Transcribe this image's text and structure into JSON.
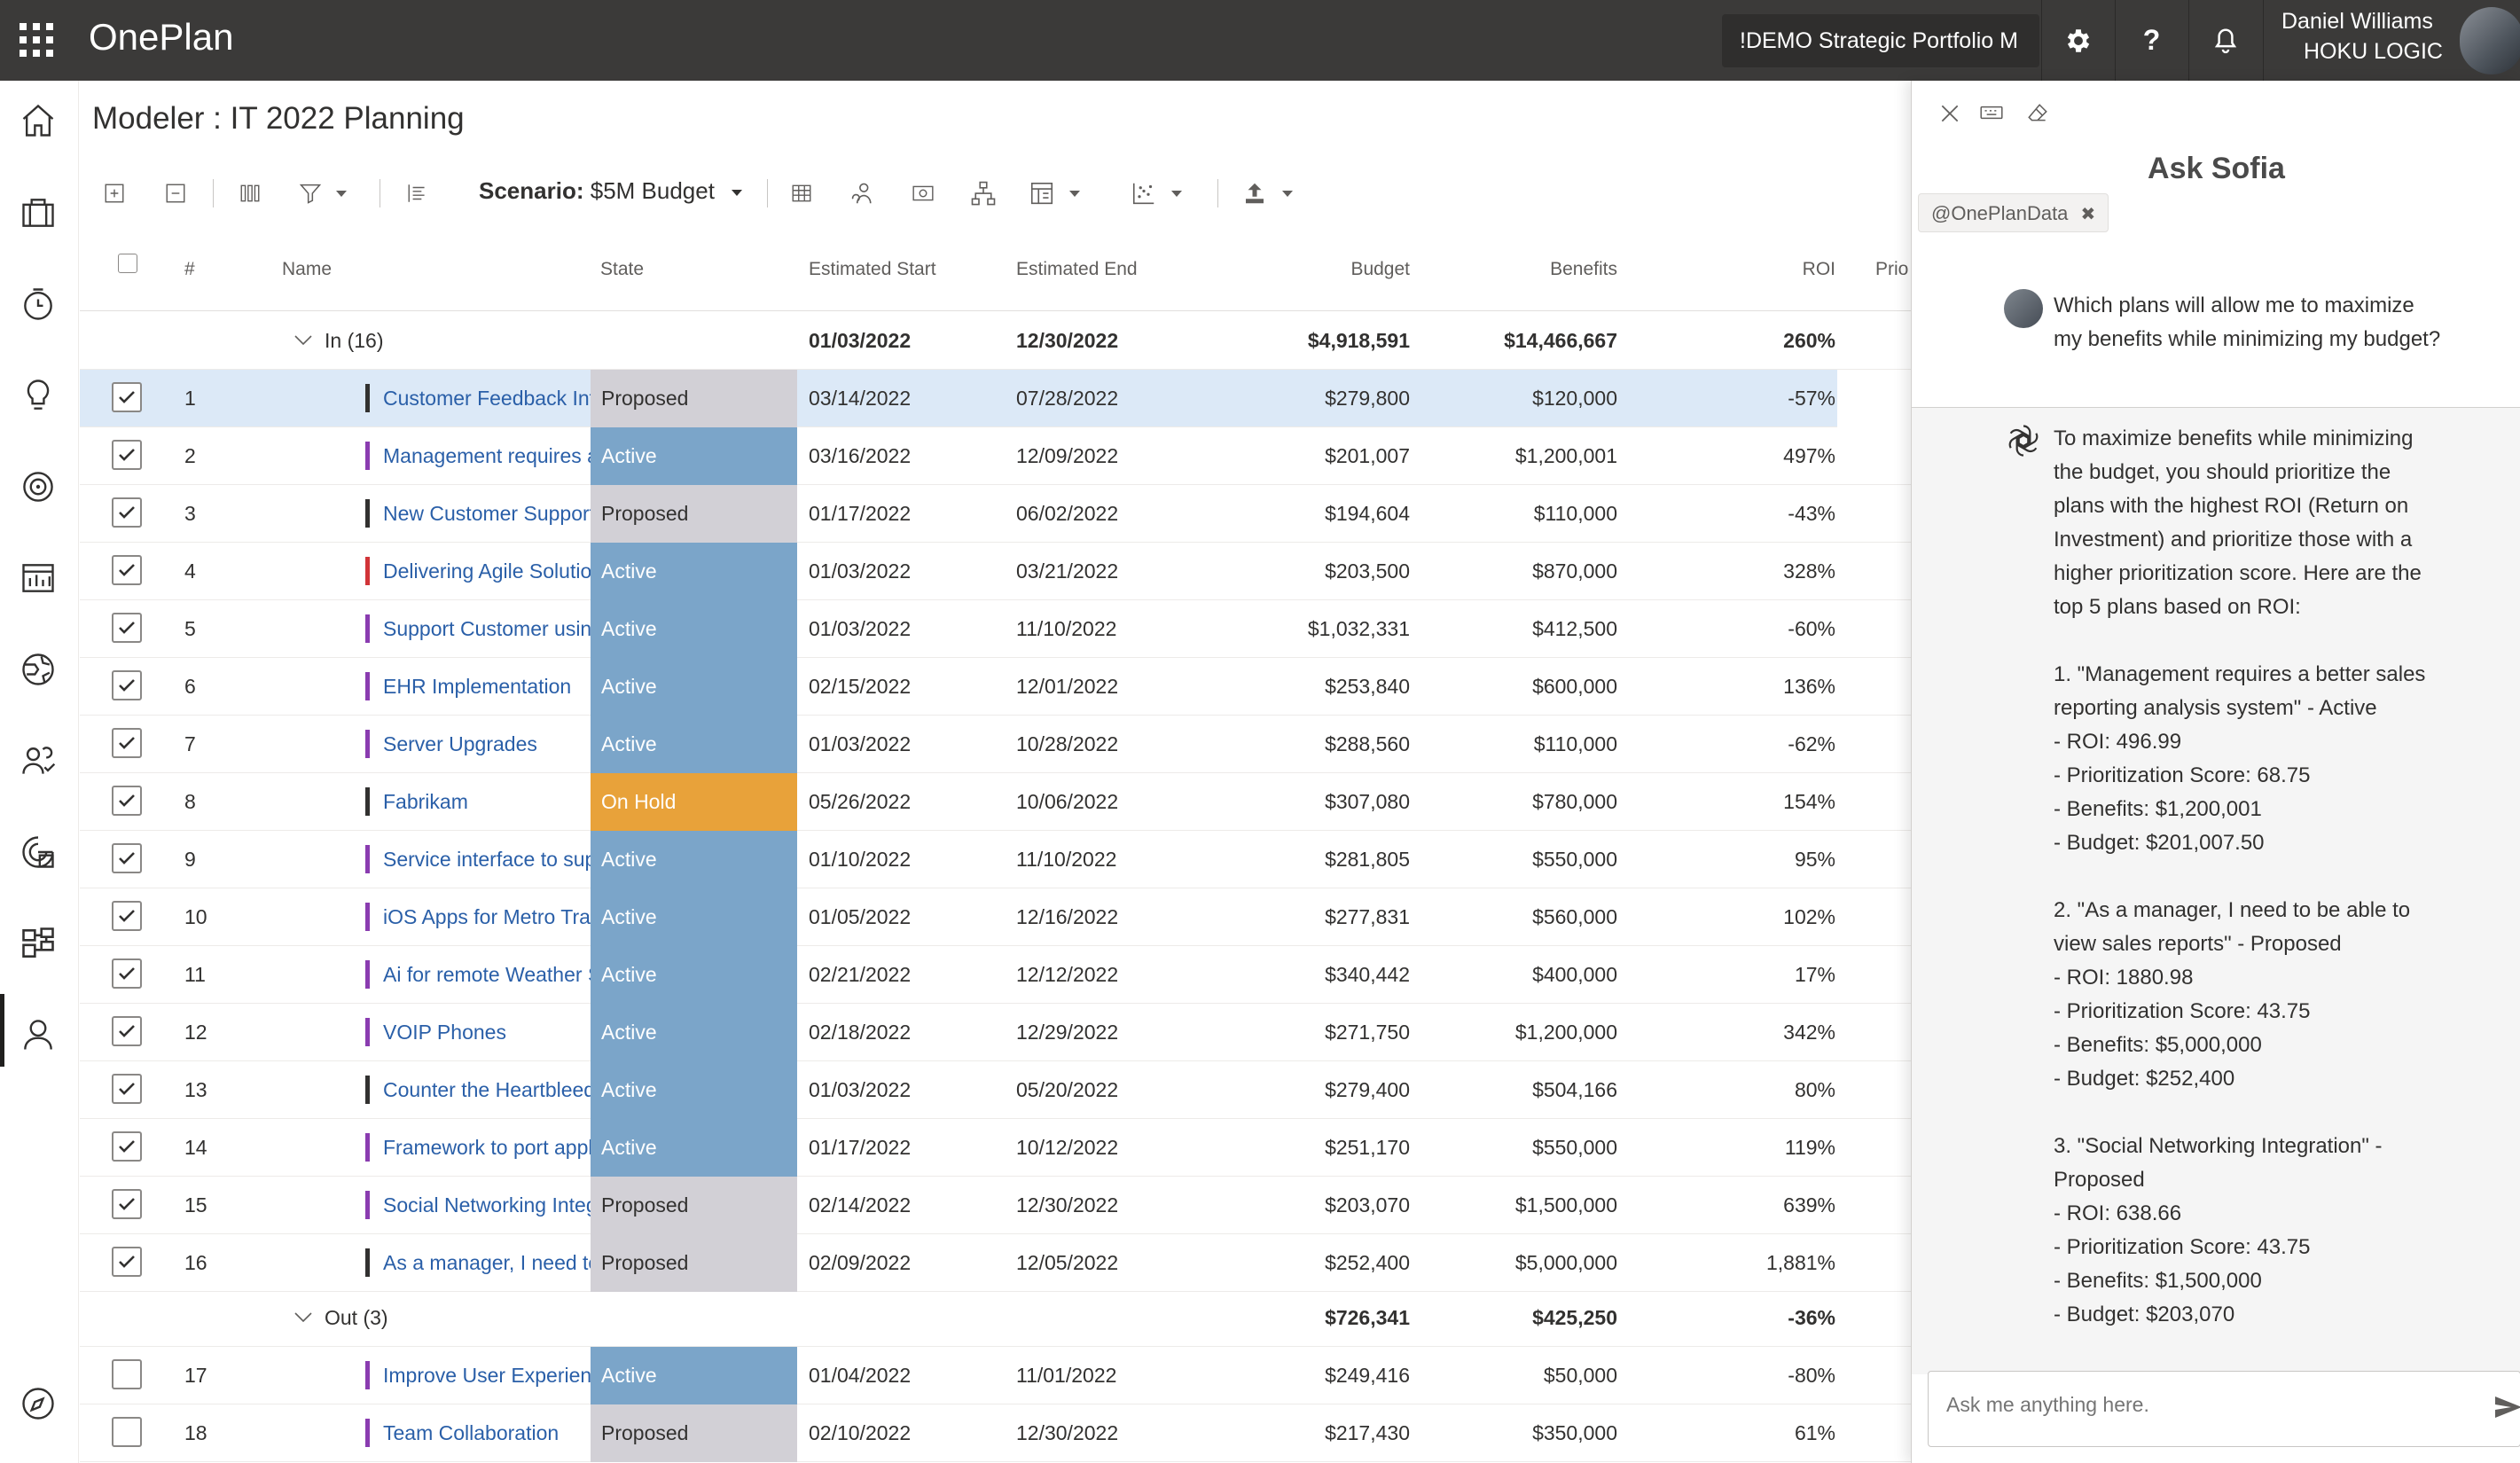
{
  "app": {
    "name": "OnePlan",
    "portfolio": "!DEMO Strategic Portfolio M",
    "user_name": "Daniel Williams",
    "user_org": "HOKU LOGIC"
  },
  "page": {
    "title": "Modeler : IT 2022 Planning"
  },
  "toolbar": {
    "scenario_label": "Scenario:",
    "scenario_value": "$5M Budget"
  },
  "grid": {
    "headers": {
      "num": "#",
      "name": "Name",
      "state": "State",
      "start": "Estimated Start",
      "end": "Estimated End",
      "budget": "Budget",
      "benefits": "Benefits",
      "roi": "ROI",
      "priority": "Prio"
    },
    "group_in": {
      "label": "In (16)",
      "start": "01/03/2022",
      "end": "12/30/2022",
      "budget": "$4,918,591",
      "benefits": "$14,466,667",
      "roi": "260%"
    },
    "group_out": {
      "label": "Out (3)",
      "budget": "$726,341",
      "benefits": "$425,250",
      "roi": "-36%"
    },
    "rows": [
      {
        "num": "1",
        "name": "Customer Feedback Integration",
        "state": "Proposed",
        "start": "03/14/2022",
        "end": "07/28/2022",
        "budget": "$279,800",
        "benefits": "$120,000",
        "roi": "-57%",
        "checked": true,
        "bar": "#323130"
      },
      {
        "num": "2",
        "name": "Management requires a better sales reporting analysis system",
        "state": "Active",
        "start": "03/16/2022",
        "end": "12/09/2022",
        "budget": "$201,007",
        "benefits": "$1,200,001",
        "roi": "497%",
        "checked": true,
        "bar": "#8a3cb0"
      },
      {
        "num": "3",
        "name": "New Customer Support Portal",
        "state": "Proposed",
        "start": "01/17/2022",
        "end": "06/02/2022",
        "budget": "$194,604",
        "benefits": "$110,000",
        "roi": "-43%",
        "checked": true,
        "bar": "#323130"
      },
      {
        "num": "4",
        "name": "Delivering Agile Solutions",
        "state": "Active",
        "start": "01/03/2022",
        "end": "03/21/2022",
        "budget": "$203,500",
        "benefits": "$870,000",
        "roi": "328%",
        "checked": true,
        "bar": "#d13438"
      },
      {
        "num": "5",
        "name": "Support Customer using Chat",
        "state": "Active",
        "start": "01/03/2022",
        "end": "11/10/2022",
        "budget": "$1,032,331",
        "benefits": "$412,500",
        "roi": "-60%",
        "checked": true,
        "bar": "#8a3cb0"
      },
      {
        "num": "6",
        "name": "EHR Implementation",
        "state": "Active",
        "start": "02/15/2022",
        "end": "12/01/2022",
        "budget": "$253,840",
        "benefits": "$600,000",
        "roi": "136%",
        "checked": true,
        "bar": "#8a3cb0"
      },
      {
        "num": "7",
        "name": "Server Upgrades",
        "state": "Active",
        "start": "01/03/2022",
        "end": "10/28/2022",
        "budget": "$288,560",
        "benefits": "$110,000",
        "roi": "-62%",
        "checked": true,
        "bar": "#8a3cb0"
      },
      {
        "num": "8",
        "name": "Fabrikam",
        "state": "On Hold",
        "start": "05/26/2022",
        "end": "10/06/2022",
        "budget": "$307,080",
        "benefits": "$780,000",
        "roi": "154%",
        "checked": true,
        "bar": "#323130"
      },
      {
        "num": "9",
        "name": "Service interface to support",
        "state": "Active",
        "start": "01/10/2022",
        "end": "11/10/2022",
        "budget": "$281,805",
        "benefits": "$550,000",
        "roi": "95%",
        "checked": true,
        "bar": "#8a3cb0"
      },
      {
        "num": "10",
        "name": "iOS Apps for Metro Transit",
        "state": "Active",
        "start": "01/05/2022",
        "end": "12/16/2022",
        "budget": "$277,831",
        "benefits": "$560,000",
        "roi": "102%",
        "checked": true,
        "bar": "#8a3cb0"
      },
      {
        "num": "11",
        "name": "Ai for remote Weather Stations",
        "state": "Active",
        "start": "02/21/2022",
        "end": "12/12/2022",
        "budget": "$340,442",
        "benefits": "$400,000",
        "roi": "17%",
        "checked": true,
        "bar": "#8a3cb0"
      },
      {
        "num": "12",
        "name": "VOIP Phones",
        "state": "Active",
        "start": "02/18/2022",
        "end": "12/29/2022",
        "budget": "$271,750",
        "benefits": "$1,200,000",
        "roi": "342%",
        "checked": true,
        "bar": "#8a3cb0"
      },
      {
        "num": "13",
        "name": "Counter the Heartbleed Bug",
        "state": "Active",
        "start": "01/03/2022",
        "end": "05/20/2022",
        "budget": "$279,400",
        "benefits": "$504,166",
        "roi": "80%",
        "checked": true,
        "bar": "#323130"
      },
      {
        "num": "14",
        "name": "Framework to port applications",
        "state": "Active",
        "start": "01/17/2022",
        "end": "10/12/2022",
        "budget": "$251,170",
        "benefits": "$550,000",
        "roi": "119%",
        "checked": true,
        "bar": "#8a3cb0"
      },
      {
        "num": "15",
        "name": "Social Networking Integration",
        "state": "Proposed",
        "start": "02/14/2022",
        "end": "12/30/2022",
        "budget": "$203,070",
        "benefits": "$1,500,000",
        "roi": "639%",
        "checked": true,
        "bar": "#8a3cb0"
      },
      {
        "num": "16",
        "name": "As a manager, I need to be able to view sales reports",
        "state": "Proposed",
        "start": "02/09/2022",
        "end": "12/05/2022",
        "budget": "$252,400",
        "benefits": "$5,000,000",
        "roi": "1,881%",
        "checked": true,
        "bar": "#323130"
      }
    ],
    "out_rows": [
      {
        "num": "17",
        "name": "Improve User Experience",
        "state": "Active",
        "start": "01/04/2022",
        "end": "11/01/2022",
        "budget": "$249,416",
        "benefits": "$50,000",
        "roi": "-80%",
        "checked": false,
        "bar": "#8a3cb0"
      },
      {
        "num": "18",
        "name": "Team Collaboration",
        "state": "Proposed",
        "start": "02/10/2022",
        "end": "12/30/2022",
        "budget": "$217,430",
        "benefits": "$350,000",
        "roi": "61%",
        "checked": false,
        "bar": "#8a3cb0"
      }
    ]
  },
  "state_colors": {
    "Proposed": "#d2d0d6",
    "Active": "#7ba5c9",
    "On Hold": "#e8a23a"
  },
  "sofia": {
    "title": "Ask Sofia",
    "tag": "@OnePlanData",
    "question": "Which plans will allow me to maximize my benefits while minimizing my budget?",
    "answer": "To maximize benefits while minimizing the budget, you should prioritize the plans with the highest ROI (Return on Investment) and prioritize those with a higher prioritization score. Here are the top 5 plans based on ROI:\n\n1. \"Management requires a better sales reporting analysis system\" - Active\n- ROI: 496.99\n- Prioritization Score: 68.75\n- Benefits: $1,200,001\n- Budget: $201,007.50\n\n2. \"As a manager, I need to be able to view sales reports\" - Proposed\n- ROI: 1880.98\n- Prioritization Score: 43.75\n- Benefits: $5,000,000\n- Budget: $252,400\n\n3. \"Social Networking Integration\" - Proposed\n- ROI: 638.66\n- Prioritization Score: 43.75\n- Benefits: $1,500,000\n- Budget: $203,070",
    "input_placeholder": "Ask me anything here."
  }
}
